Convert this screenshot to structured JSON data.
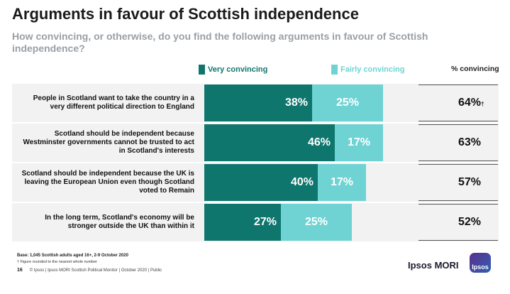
{
  "title": "Arguments in favour of Scottish independence",
  "subtitle": "How convincing, or otherwise, do you find the following arguments in favour of Scottish independence?",
  "legend": {
    "very": "Very convincing",
    "fairly": "Fairly convincing",
    "total_header": "% convincing"
  },
  "colors": {
    "very": "#0f766e",
    "fairly": "#6fd3d3",
    "band": "#f2f2f2"
  },
  "chart_data": {
    "type": "bar",
    "orientation": "horizontal",
    "stacked": true,
    "categories": [
      "People in Scotland want to take the country in a very different political direction to England",
      "Scotland should be independent because Westminster governments cannot be trusted to act in Scotland's interests",
      "Scotland should be independent because the UK is leaving the European Union even though Scotland voted to Remain",
      "In the long term, Scotland's economy will be stronger outside the UK than within it"
    ],
    "series": [
      {
        "name": "Very convincing",
        "values": [
          38,
          46,
          40,
          27
        ]
      },
      {
        "name": "Fairly convincing",
        "values": [
          25,
          17,
          17,
          25
        ]
      }
    ],
    "value_labels": {
      "very": [
        "38%",
        "46%",
        "40%",
        "27%"
      ],
      "fairly": [
        "25%",
        "17%",
        "17%",
        "25%"
      ]
    },
    "totals": [
      "64%",
      "63%",
      "57%",
      "52%"
    ],
    "total_markers": [
      "†",
      "",
      "",
      ""
    ]
  },
  "footer": {
    "base": "Base: 1,045 Scottish adults aged 16+, 2-9 October 2020",
    "note": "† Figure rounded to the nearest whole number",
    "page": "16",
    "source": "© Ipsos | Ipsos MORI Scottish Political Monitor | October 2020 | Public",
    "brand": "Ipsos MORI",
    "logo": "Ipsos"
  }
}
